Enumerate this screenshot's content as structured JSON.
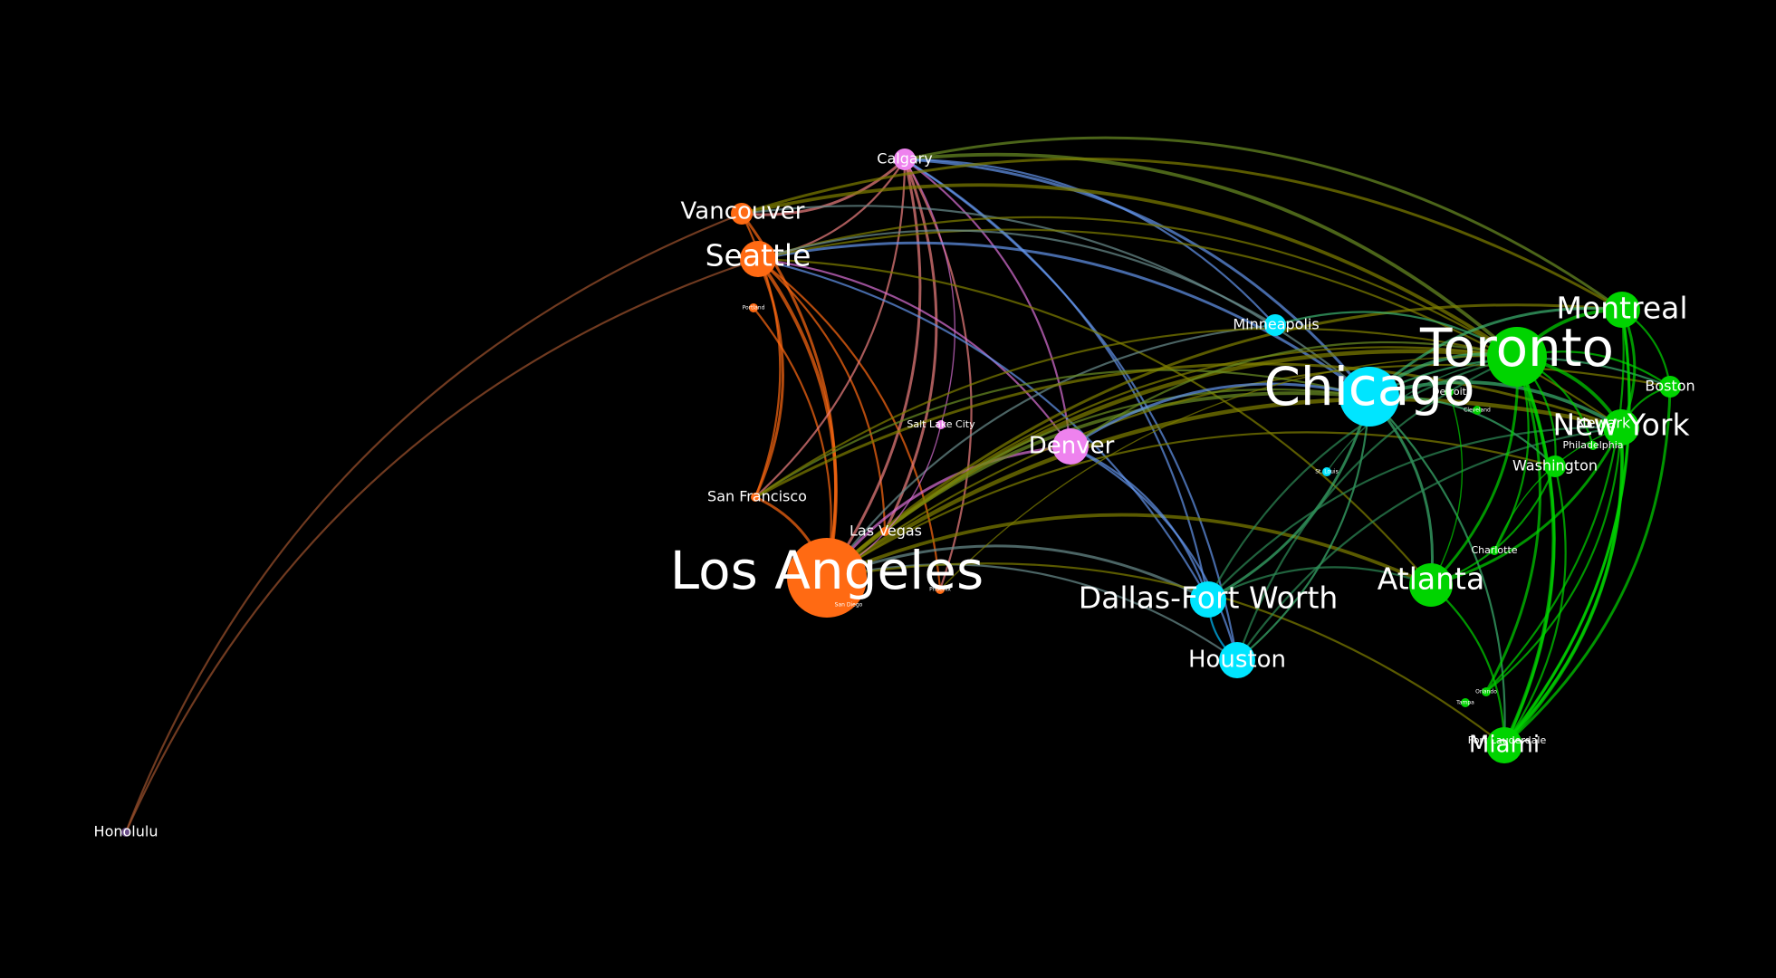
{
  "network": {
    "nodes": [
      {
        "id": "honolulu",
        "label": "Honolulu",
        "color": "#6b4e8a",
        "tier": "xs",
        "label_tier": "m"
      },
      {
        "id": "vancouver",
        "label": "Vancouver",
        "color": "#ff6a13",
        "tier": "s",
        "label_tier": "l"
      },
      {
        "id": "seattle",
        "label": "Seattle",
        "color": "#ff6a13",
        "tier": "m",
        "label_tier": "xl"
      },
      {
        "id": "portland",
        "label": "Portland",
        "color": "#ff6a13",
        "tier": "xs",
        "label_tier": "xs"
      },
      {
        "id": "san-francisco",
        "label": "San Francisco",
        "color": "#ff6a13",
        "tier": "xs",
        "label_tier": "m"
      },
      {
        "id": "los-angeles",
        "label": "Los Angeles",
        "color": "#ff6a13",
        "tier": "xxl",
        "label_tier": "xxl"
      },
      {
        "id": "las-vegas",
        "label": "Las Vegas",
        "color": "#ff6a13",
        "tier": "xs",
        "label_tier": "m"
      },
      {
        "id": "phoenix",
        "label": "Phoenix",
        "color": "#ff6a13",
        "tier": "xs",
        "label_tier": "xs"
      },
      {
        "id": "san-diego",
        "label": "San Diego",
        "color": "#ff6a13",
        "tier": "xs",
        "label_tier": "xs"
      },
      {
        "id": "calgary",
        "label": "Calgary",
        "color": "#ee82ee",
        "tier": "s",
        "label_tier": "m"
      },
      {
        "id": "salt-lake-city",
        "label": "Salt Lake City",
        "color": "#ee82ee",
        "tier": "xs",
        "label_tier": "s"
      },
      {
        "id": "denver",
        "label": "Denver",
        "color": "#ee82ee",
        "tier": "m",
        "label_tier": "l"
      },
      {
        "id": "minneapolis",
        "label": "Minneapolis",
        "color": "#00e5ff",
        "tier": "s",
        "label_tier": "m"
      },
      {
        "id": "chicago",
        "label": "Chicago",
        "color": "#00e5ff",
        "tier": "xl",
        "label_tier": "xxl"
      },
      {
        "id": "st-louis",
        "label": "St. Louis",
        "color": "#00e5ff",
        "tier": "xs",
        "label_tier": "xs"
      },
      {
        "id": "dallas-fort-worth",
        "label": "Dallas-Fort Worth",
        "color": "#00e5ff",
        "tier": "m",
        "label_tier": "xl"
      },
      {
        "id": "houston",
        "label": "Houston",
        "color": "#00e5ff",
        "tier": "m",
        "label_tier": "l"
      },
      {
        "id": "toronto",
        "label": "Toronto",
        "color": "#00d400",
        "tier": "xl",
        "label_tier": "xxl"
      },
      {
        "id": "montreal",
        "label": "Montreal",
        "color": "#00d400",
        "tier": "m",
        "label_tier": "xl"
      },
      {
        "id": "boston",
        "label": "Boston",
        "color": "#00d400",
        "tier": "s",
        "label_tier": "m"
      },
      {
        "id": "detroit",
        "label": "Detroit",
        "color": "#00d400",
        "tier": "xs",
        "label_tier": "s"
      },
      {
        "id": "cleveland",
        "label": "Cleveland",
        "color": "#00d400",
        "tier": "xs",
        "label_tier": "xs"
      },
      {
        "id": "newark",
        "label": "Newark",
        "color": "#00d400",
        "tier": "xs",
        "label_tier": "m"
      },
      {
        "id": "new-york",
        "label": "New York",
        "color": "#00d400",
        "tier": "m",
        "label_tier": "xl"
      },
      {
        "id": "philadelphia",
        "label": "Philadelphia",
        "color": "#00d400",
        "tier": "xs",
        "label_tier": "s"
      },
      {
        "id": "washington",
        "label": "Washington",
        "color": "#00d400",
        "tier": "s",
        "label_tier": "m"
      },
      {
        "id": "charlotte",
        "label": "Charlotte",
        "color": "#00d400",
        "tier": "xs",
        "label_tier": "s"
      },
      {
        "id": "atlanta",
        "label": "Atlanta",
        "color": "#00d400",
        "tier": "l",
        "label_tier": "xl"
      },
      {
        "id": "orlando",
        "label": "Orlando",
        "color": "#00d400",
        "tier": "xs",
        "label_tier": "xs"
      },
      {
        "id": "tampa",
        "label": "Tampa",
        "color": "#00d400",
        "tier": "xs",
        "label_tier": "xs"
      },
      {
        "id": "fort-lauderdale",
        "label": "Fort Lauderdale",
        "color": "#00d400",
        "tier": "xs",
        "label_tier": "s"
      },
      {
        "id": "miami",
        "label": "Miami",
        "color": "#00d400",
        "tier": "m",
        "label_tier": "l"
      }
    ],
    "edges": [
      {
        "source": "honolulu",
        "target": "vancouver",
        "color": "#a0522d",
        "weight": 2
      },
      {
        "source": "honolulu",
        "target": "seattle",
        "color": "#a0522d",
        "weight": 2
      },
      {
        "source": "vancouver",
        "target": "los-angeles",
        "color": "#ff6a13",
        "weight": 3
      },
      {
        "source": "vancouver",
        "target": "san-francisco",
        "color": "#ff6a13",
        "weight": 2
      },
      {
        "source": "seattle",
        "target": "los-angeles",
        "color": "#ff6a13",
        "weight": 4
      },
      {
        "source": "seattle",
        "target": "san-francisco",
        "color": "#ff6a13",
        "weight": 3
      },
      {
        "source": "seattle",
        "target": "las-vegas",
        "color": "#ff6a13",
        "weight": 2
      },
      {
        "source": "seattle",
        "target": "phoenix",
        "color": "#ff6a13",
        "weight": 2
      },
      {
        "source": "portland",
        "target": "los-angeles",
        "color": "#ff6a13",
        "weight": 2
      },
      {
        "source": "san-francisco",
        "target": "los-angeles",
        "color": "#ff6a13",
        "weight": 3
      },
      {
        "source": "calgary",
        "target": "vancouver",
        "color": "#f08080",
        "weight": 3
      },
      {
        "source": "calgary",
        "target": "seattle",
        "color": "#f08080",
        "weight": 2
      },
      {
        "source": "calgary",
        "target": "los-angeles",
        "color": "#f08080",
        "weight": 3
      },
      {
        "source": "calgary",
        "target": "las-vegas",
        "color": "#f08080",
        "weight": 3
      },
      {
        "source": "calgary",
        "target": "phoenix",
        "color": "#f08080",
        "weight": 2
      },
      {
        "source": "calgary",
        "target": "san-francisco",
        "color": "#f08080",
        "weight": 2
      },
      {
        "source": "calgary",
        "target": "denver",
        "color": "#da70d6",
        "weight": 2
      },
      {
        "source": "calgary",
        "target": "salt-lake-city",
        "color": "#da70d6",
        "weight": 1
      },
      {
        "source": "calgary",
        "target": "chicago",
        "color": "#6495ed",
        "weight": 3
      },
      {
        "source": "calgary",
        "target": "toronto",
        "color": "#6b8e23",
        "weight": 4
      },
      {
        "source": "calgary",
        "target": "montreal",
        "color": "#6b8e23",
        "weight": 3
      },
      {
        "source": "calgary",
        "target": "houston",
        "color": "#6495ed",
        "weight": 2
      },
      {
        "source": "calgary",
        "target": "dallas-fort-worth",
        "color": "#6495ed",
        "weight": 2
      },
      {
        "source": "calgary",
        "target": "minneapolis",
        "color": "#6495ed",
        "weight": 2
      },
      {
        "source": "vancouver",
        "target": "toronto",
        "color": "#808000",
        "weight": 4
      },
      {
        "source": "vancouver",
        "target": "montreal",
        "color": "#808000",
        "weight": 3
      },
      {
        "source": "vancouver",
        "target": "chicago",
        "color": "#6b8e8e",
        "weight": 2
      },
      {
        "source": "seattle",
        "target": "chicago",
        "color": "#6495ed",
        "weight": 3
      },
      {
        "source": "seattle",
        "target": "denver",
        "color": "#da70d6",
        "weight": 2
      },
      {
        "source": "seattle",
        "target": "toronto",
        "color": "#808000",
        "weight": 2
      },
      {
        "source": "seattle",
        "target": "new-york",
        "color": "#808000",
        "weight": 2
      },
      {
        "source": "seattle",
        "target": "dallas-fort-worth",
        "color": "#6495ed",
        "weight": 2
      },
      {
        "source": "seattle",
        "target": "minneapolis",
        "color": "#6b8e8e",
        "weight": 2
      },
      {
        "source": "seattle",
        "target": "atlanta",
        "color": "#808000",
        "weight": 2
      },
      {
        "source": "los-angeles",
        "target": "denver",
        "color": "#da70d6",
        "weight": 3
      },
      {
        "source": "los-angeles",
        "target": "chicago",
        "color": "#6b8e23",
        "weight": 4
      },
      {
        "source": "los-angeles",
        "target": "toronto",
        "color": "#808000",
        "weight": 5
      },
      {
        "source": "los-angeles",
        "target": "new-york",
        "color": "#808000",
        "weight": 5
      },
      {
        "source": "los-angeles",
        "target": "montreal",
        "color": "#808000",
        "weight": 3
      },
      {
        "source": "los-angeles",
        "target": "atlanta",
        "color": "#808000",
        "weight": 4
      },
      {
        "source": "los-angeles",
        "target": "dallas-fort-worth",
        "color": "#6b8e8e",
        "weight": 3
      },
      {
        "source": "los-angeles",
        "target": "houston",
        "color": "#6b8e8e",
        "weight": 2
      },
      {
        "source": "los-angeles",
        "target": "miami",
        "color": "#808000",
        "weight": 2
      },
      {
        "source": "los-angeles",
        "target": "washington",
        "color": "#808000",
        "weight": 2
      },
      {
        "source": "los-angeles",
        "target": "boston",
        "color": "#808000",
        "weight": 2
      },
      {
        "source": "los-angeles",
        "target": "minneapolis",
        "color": "#6b8e8e",
        "weight": 2
      },
      {
        "source": "san-francisco",
        "target": "chicago",
        "color": "#6b8e23",
        "weight": 2
      },
      {
        "source": "san-francisco",
        "target": "toronto",
        "color": "#808000",
        "weight": 2
      },
      {
        "source": "san-francisco",
        "target": "new-york",
        "color": "#808000",
        "weight": 3
      },
      {
        "source": "las-vegas",
        "target": "chicago",
        "color": "#6b8e23",
        "weight": 2
      },
      {
        "source": "las-vegas",
        "target": "toronto",
        "color": "#808000",
        "weight": 2
      },
      {
        "source": "denver",
        "target": "chicago",
        "color": "#6495ed",
        "weight": 3
      },
      {
        "source": "denver",
        "target": "toronto",
        "color": "#6b8e23",
        "weight": 2
      },
      {
        "source": "denver",
        "target": "houston",
        "color": "#6495ed",
        "weight": 2
      },
      {
        "source": "denver",
        "target": "dallas-fort-worth",
        "color": "#6495ed",
        "weight": 2
      },
      {
        "source": "minneapolis",
        "target": "toronto",
        "color": "#3cb371",
        "weight": 2
      },
      {
        "source": "chicago",
        "target": "toronto",
        "color": "#3cb371",
        "weight": 4
      },
      {
        "source": "chicago",
        "target": "new-york",
        "color": "#3cb371",
        "weight": 4
      },
      {
        "source": "chicago",
        "target": "montreal",
        "color": "#3cb371",
        "weight": 3
      },
      {
        "source": "chicago",
        "target": "atlanta",
        "color": "#3cb371",
        "weight": 3
      },
      {
        "source": "chicago",
        "target": "dallas-fort-worth",
        "color": "#3cb371",
        "weight": 3
      },
      {
        "source": "chicago",
        "target": "houston",
        "color": "#3cb371",
        "weight": 2
      },
      {
        "source": "chicago",
        "target": "boston",
        "color": "#3cb371",
        "weight": 2
      },
      {
        "source": "chicago",
        "target": "washington",
        "color": "#3cb371",
        "weight": 2
      },
      {
        "source": "chicago",
        "target": "miami",
        "color": "#3cb371",
        "weight": 2
      },
      {
        "source": "dallas-fort-worth",
        "target": "toronto",
        "color": "#2e8b57",
        "weight": 2
      },
      {
        "source": "dallas-fort-worth",
        "target": "new-york",
        "color": "#2e8b57",
        "weight": 2
      },
      {
        "source": "dallas-fort-worth",
        "target": "atlanta",
        "color": "#2e8b57",
        "weight": 2
      },
      {
        "source": "houston",
        "target": "toronto",
        "color": "#2e8b57",
        "weight": 2
      },
      {
        "source": "houston",
        "target": "new-york",
        "color": "#2e8b57",
        "weight": 2
      },
      {
        "source": "houston",
        "target": "dallas-fort-worth",
        "color": "#00bfff",
        "weight": 2
      },
      {
        "source": "toronto",
        "target": "montreal",
        "color": "#00d400",
        "weight": 4
      },
      {
        "source": "toronto",
        "target": "new-york",
        "color": "#00d400",
        "weight": 4
      },
      {
        "source": "toronto",
        "target": "boston",
        "color": "#00d400",
        "weight": 2
      },
      {
        "source": "toronto",
        "target": "atlanta",
        "color": "#00d400",
        "weight": 3
      },
      {
        "source": "toronto",
        "target": "miami",
        "color": "#00d400",
        "weight": 4
      },
      {
        "source": "toronto",
        "target": "fort-lauderdale",
        "color": "#00d400",
        "weight": 3
      },
      {
        "source": "toronto",
        "target": "orlando",
        "color": "#00d400",
        "weight": 3
      },
      {
        "source": "toronto",
        "target": "washington",
        "color": "#00d400",
        "weight": 2
      },
      {
        "source": "toronto",
        "target": "philadelphia",
        "color": "#00d400",
        "weight": 2
      },
      {
        "source": "toronto",
        "target": "charlotte",
        "color": "#00d400",
        "weight": 2
      },
      {
        "source": "montreal",
        "target": "new-york",
        "color": "#00d400",
        "weight": 3
      },
      {
        "source": "montreal",
        "target": "miami",
        "color": "#00d400",
        "weight": 3
      },
      {
        "source": "montreal",
        "target": "fort-lauderdale",
        "color": "#00d400",
        "weight": 3
      },
      {
        "source": "montreal",
        "target": "boston",
        "color": "#00d400",
        "weight": 2
      },
      {
        "source": "montreal",
        "target": "orlando",
        "color": "#00d400",
        "weight": 2
      },
      {
        "source": "new-york",
        "target": "miami",
        "color": "#00d400",
        "weight": 4
      },
      {
        "source": "new-york",
        "target": "atlanta",
        "color": "#00d400",
        "weight": 3
      },
      {
        "source": "new-york",
        "target": "fort-lauderdale",
        "color": "#00d400",
        "weight": 3
      },
      {
        "source": "new-york",
        "target": "orlando",
        "color": "#00d400",
        "weight": 2
      },
      {
        "source": "new-york",
        "target": "boston",
        "color": "#00d400",
        "weight": 2
      },
      {
        "source": "washington",
        "target": "atlanta",
        "color": "#00d400",
        "weight": 2
      },
      {
        "source": "washington",
        "target": "miami",
        "color": "#00d400",
        "weight": 2
      },
      {
        "source": "atlanta",
        "target": "miami",
        "color": "#00d400",
        "weight": 2
      },
      {
        "source": "boston",
        "target": "miami",
        "color": "#00d400",
        "weight": 3
      },
      {
        "source": "charlotte",
        "target": "new-york",
        "color": "#00d400",
        "weight": 1
      },
      {
        "source": "detroit",
        "target": "atlanta",
        "color": "#00d400",
        "weight": 1
      },
      {
        "source": "st-louis",
        "target": "toronto",
        "color": "#2e8b57",
        "weight": 1
      },
      {
        "source": "salt-lake-city",
        "target": "los-angeles",
        "color": "#da70d6",
        "weight": 1
      },
      {
        "source": "phoenix",
        "target": "toronto",
        "color": "#808000",
        "weight": 1
      }
    ]
  }
}
